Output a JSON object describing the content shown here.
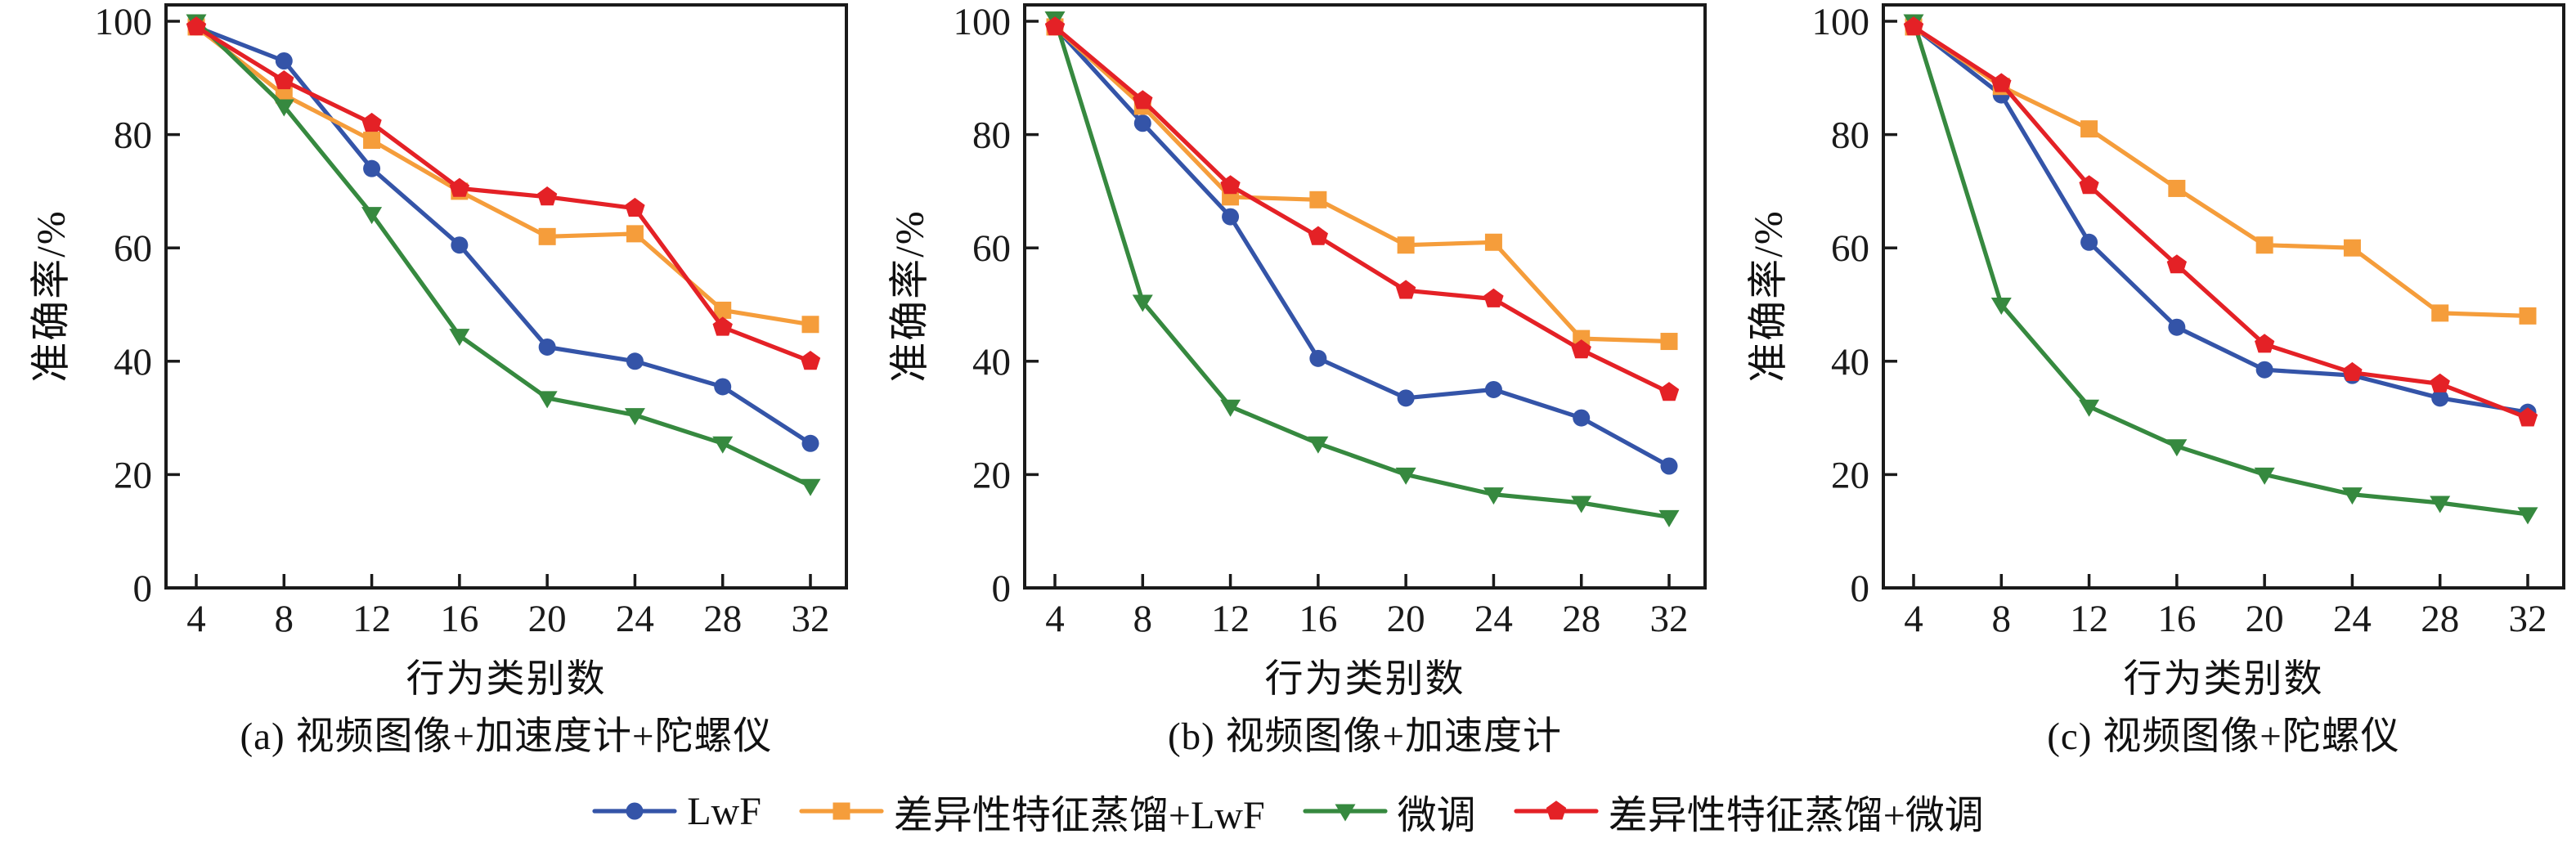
{
  "colors": {
    "axis": "#1a1a1a",
    "lwf": "#3454a8",
    "distill_lwf": "#f59d3b",
    "finetune": "#36893f",
    "distill_finetune": "#e42126"
  },
  "legend": [
    {
      "id": "lwf",
      "label": "LwF",
      "marker": "circle",
      "color": "#3454a8"
    },
    {
      "id": "distill-lwf",
      "label": "差异性特征蒸馏+LwF",
      "marker": "square",
      "color": "#f59d3b"
    },
    {
      "id": "finetune",
      "label": "微调",
      "marker": "triangle-down",
      "color": "#36893f"
    },
    {
      "id": "distill-finetune",
      "label": "差异性特征蒸馏+微调",
      "marker": "pentagon",
      "color": "#e42126"
    }
  ],
  "chart_data": [
    {
      "type": "line",
      "title": "(a) 视频图像+加速度计+陀螺仪",
      "xlabel": "行为类别数",
      "ylabel": "准确率/%",
      "x": [
        4,
        8,
        12,
        16,
        20,
        24,
        28,
        32
      ],
      "xticks": [
        4,
        8,
        12,
        16,
        20,
        24,
        28,
        32
      ],
      "yticks": [
        0,
        20,
        40,
        60,
        80,
        100
      ],
      "ylim": [
        0,
        100
      ],
      "grid": false,
      "legend_position": "bottom",
      "series": [
        {
          "id": "lwf",
          "name": "LwF",
          "marker": "circle",
          "color": "#3454a8",
          "values": [
            99,
            93,
            74,
            60.5,
            42.5,
            40,
            35.5,
            25.5
          ]
        },
        {
          "id": "distill-lwf",
          "name": "差异性特征蒸馏+LwF",
          "marker": "square",
          "color": "#f59d3b",
          "values": [
            99,
            87,
            79,
            70,
            62,
            62.5,
            49,
            46.5
          ]
        },
        {
          "id": "finetune",
          "name": "微调",
          "marker": "triangle-down",
          "color": "#36893f",
          "values": [
            100,
            85,
            66,
            44.5,
            33.5,
            30.5,
            25.5,
            18
          ]
        },
        {
          "id": "distill-finetune",
          "name": "差异性特征蒸馏+微调",
          "marker": "pentagon",
          "color": "#e42126",
          "values": [
            99,
            89.5,
            82,
            70.5,
            69,
            67,
            46,
            40
          ]
        }
      ]
    },
    {
      "type": "line",
      "title": "(b) 视频图像+加速度计",
      "xlabel": "行为类别数",
      "ylabel": "准确率/%",
      "x": [
        4,
        8,
        12,
        16,
        20,
        24,
        28,
        32
      ],
      "xticks": [
        4,
        8,
        12,
        16,
        20,
        24,
        28,
        32
      ],
      "yticks": [
        0,
        20,
        40,
        60,
        80,
        100
      ],
      "ylim": [
        0,
        100
      ],
      "grid": false,
      "legend_position": "bottom",
      "series": [
        {
          "id": "lwf",
          "name": "LwF",
          "marker": "circle",
          "color": "#3454a8",
          "values": [
            99,
            82,
            65.5,
            40.5,
            33.5,
            35,
            30,
            21.5
          ]
        },
        {
          "id": "distill-lwf",
          "name": "差异性特征蒸馏+LwF",
          "marker": "square",
          "color": "#f59d3b",
          "values": [
            99,
            85,
            69,
            68.5,
            60.5,
            61,
            44,
            43.5
          ]
        },
        {
          "id": "finetune",
          "name": "微调",
          "marker": "triangle-down",
          "color": "#36893f",
          "values": [
            100.5,
            50.5,
            32,
            25.5,
            20,
            16.5,
            15,
            12.5
          ]
        },
        {
          "id": "distill-finetune",
          "name": "差异性特征蒸馏+微调",
          "marker": "pentagon",
          "color": "#e42126",
          "values": [
            99,
            86,
            71,
            62,
            52.5,
            51,
            42,
            34.5
          ]
        }
      ]
    },
    {
      "type": "line",
      "title": "(c) 视频图像+陀螺仪",
      "xlabel": "行为类别数",
      "ylabel": "准确率/%",
      "x": [
        4,
        8,
        12,
        16,
        20,
        24,
        28,
        32
      ],
      "xticks": [
        4,
        8,
        12,
        16,
        20,
        24,
        28,
        32
      ],
      "yticks": [
        0,
        20,
        40,
        60,
        80,
        100
      ],
      "ylim": [
        0,
        100
      ],
      "grid": false,
      "legend_position": "bottom",
      "series": [
        {
          "id": "lwf",
          "name": "LwF",
          "marker": "circle",
          "color": "#3454a8",
          "values": [
            99,
            87,
            61,
            46,
            38.5,
            37.5,
            33.5,
            31
          ]
        },
        {
          "id": "distill-lwf",
          "name": "差异性特征蒸馏+LwF",
          "marker": "square",
          "color": "#f59d3b",
          "values": [
            99,
            88.5,
            81,
            70.5,
            60.5,
            60,
            48.5,
            48
          ]
        },
        {
          "id": "finetune",
          "name": "微调",
          "marker": "triangle-down",
          "color": "#36893f",
          "values": [
            100,
            50,
            32,
            25,
            20,
            16.5,
            15,
            13
          ]
        },
        {
          "id": "distill-finetune",
          "name": "差异性特征蒸馏+微调",
          "marker": "pentagon",
          "color": "#e42126",
          "values": [
            99,
            89,
            71,
            57,
            43,
            38,
            36,
            30
          ]
        }
      ]
    }
  ]
}
